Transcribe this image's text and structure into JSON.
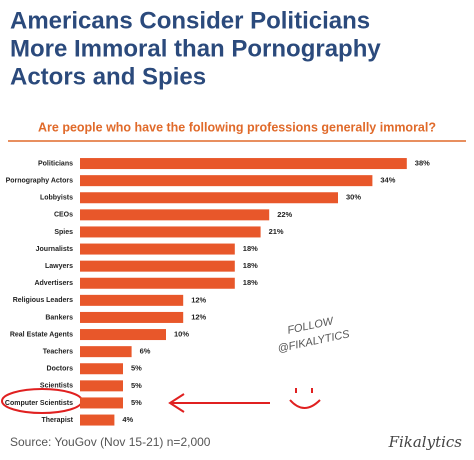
{
  "chart_data": {
    "type": "bar",
    "orientation": "horizontal",
    "title": [
      "Americans Consider Politicians",
      "More Immoral than Pornography",
      "Actors and Spies"
    ],
    "subtitle": "Are people who have the following professions generally immoral?",
    "categories": [
      "Politicians",
      "Pornography Actors",
      "Lobbyists",
      "CEOs",
      "Spies",
      "Journalists",
      "Lawyers",
      "Advertisers",
      "Religious Leaders",
      "Bankers",
      "Real Estate Agents",
      "Teachers",
      "Doctors",
      "Scientists",
      "Computer Scientists",
      "Therapist"
    ],
    "values": [
      38,
      34,
      30,
      22,
      21,
      18,
      18,
      18,
      12,
      12,
      10,
      6,
      5,
      5,
      5,
      4
    ],
    "value_labels": [
      "38%",
      "34%",
      "30%",
      "22%",
      "21%",
      "18%",
      "18%",
      "18%",
      "12%",
      "12%",
      "10%",
      "6%",
      "5%",
      "5%",
      "5%",
      "4%"
    ],
    "color": "#e8572a",
    "xlim": [
      0,
      40
    ],
    "annotations": [
      "FOLLOW",
      "@FIKALYTICS"
    ],
    "source": "Source: YouGov (Nov 15-21) n=2,000",
    "signature": "Fikalytics"
  }
}
